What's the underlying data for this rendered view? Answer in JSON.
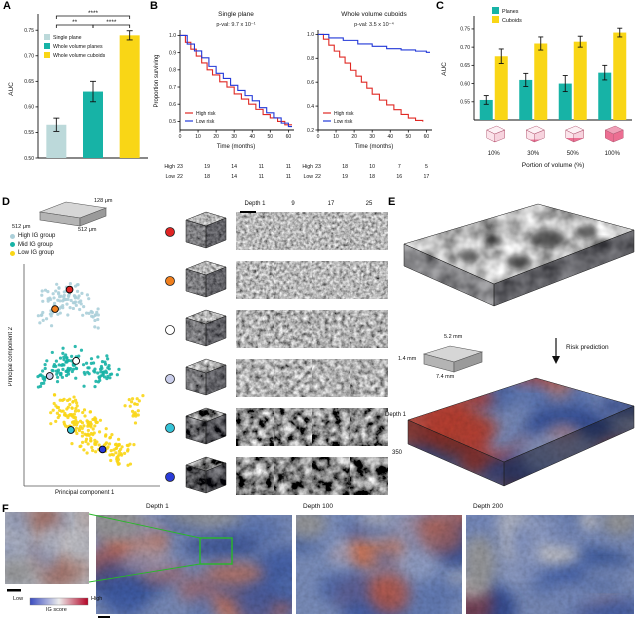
{
  "panels": {
    "A": {
      "label": "A"
    },
    "B": {
      "label": "B"
    },
    "C": {
      "label": "C"
    },
    "D": {
      "label": "D"
    },
    "E": {
      "label": "E"
    },
    "F": {
      "label": "F"
    }
  },
  "colors": {
    "high_risk": "#e02823",
    "low_risk": "#2238d8",
    "teal": "#17b3a6",
    "light_teal": "#bcd9da",
    "yellow": "#f9d616",
    "ig_low": "#3b4cc0",
    "ig_high": "#b40426",
    "green_annotation": "#28b828",
    "portion_pink": "#ec6e92"
  },
  "chart_data": [
    {
      "id": "auc-by-input",
      "type": "bar",
      "ylabel": "AUC",
      "ylim": [
        0.5,
        0.77
      ],
      "yticks": [
        0.5,
        0.55,
        0.6,
        0.65,
        0.7,
        0.75
      ],
      "categories": [
        "Single plane",
        "Whole volume planes",
        "Whole volume cuboids"
      ],
      "values": [
        0.565,
        0.63,
        0.74
      ],
      "errors": [
        0.013,
        0.02,
        0.009
      ],
      "bar_colors": [
        "#bcd9da",
        "#17b3a6",
        "#f9d616"
      ],
      "legend": [
        "Single plane",
        "Whole volume planes",
        "Whole volume cuboids"
      ],
      "significance": [
        {
          "from": 0,
          "to": 2,
          "label": "****",
          "level": 0
        },
        {
          "from": 0,
          "to": 1,
          "label": "**",
          "level": 1
        },
        {
          "from": 1,
          "to": 2,
          "label": "****",
          "level": 1
        }
      ]
    },
    {
      "id": "km-single-plane",
      "type": "line",
      "title": "Single plane",
      "pval": "p-val: 9.7 x 10⁻¹",
      "xlabel": "Time (months)",
      "ylabel": "Proportion surviving",
      "xlim": [
        0,
        62
      ],
      "xticks": [
        0,
        10,
        20,
        30,
        40,
        50,
        60
      ],
      "ylim": [
        0.45,
        1.02
      ],
      "yticks": [
        0.5,
        0.6,
        0.7,
        0.8,
        0.9,
        1.0
      ],
      "series": [
        {
          "name": "High risk",
          "color": "#e02823",
          "x": [
            0,
            3,
            6,
            9,
            12,
            15,
            18,
            22,
            26,
            30,
            34,
            38,
            42,
            46,
            50,
            54,
            58,
            62
          ],
          "y": [
            1.0,
            0.96,
            0.92,
            0.88,
            0.84,
            0.8,
            0.77,
            0.73,
            0.7,
            0.66,
            0.63,
            0.6,
            0.57,
            0.54,
            0.52,
            0.5,
            0.48,
            0.48
          ]
        },
        {
          "name": "Low risk",
          "color": "#2238d8",
          "x": [
            0,
            4,
            8,
            12,
            16,
            20,
            24,
            28,
            32,
            36,
            40,
            44,
            48,
            52,
            56,
            60,
            62
          ],
          "y": [
            1.0,
            0.95,
            0.91,
            0.87,
            0.82,
            0.78,
            0.75,
            0.71,
            0.68,
            0.65,
            0.62,
            0.58,
            0.55,
            0.52,
            0.49,
            0.47,
            0.47
          ]
        }
      ],
      "risk_table": {
        "times": [
          0,
          15,
          30,
          45,
          60
        ],
        "rows": [
          {
            "label": "High",
            "values": [
              23,
              19,
              14,
              11,
              11
            ]
          },
          {
            "label": "Low",
            "values": [
              22,
              18,
              14,
              11,
              11
            ]
          }
        ]
      }
    },
    {
      "id": "km-whole-volume-cuboids",
      "type": "line",
      "title": "Whole volume cuboids",
      "pval": "p-val: 3.5 x 10⁻⁴",
      "xlabel": "Time (months)",
      "ylabel": "Proportion surviving",
      "xlim": [
        0,
        62
      ],
      "xticks": [
        0,
        10,
        20,
        30,
        40,
        50,
        60
      ],
      "ylim": [
        0.2,
        1.02
      ],
      "yticks": [
        0.2,
        0.4,
        0.6,
        0.8,
        1.0
      ],
      "series": [
        {
          "name": "High risk",
          "color": "#e02823",
          "x": [
            0,
            3,
            6,
            9,
            12,
            15,
            18,
            21,
            24,
            27,
            30,
            34,
            38,
            42,
            46,
            50,
            54,
            58
          ],
          "y": [
            1.0,
            0.96,
            0.91,
            0.86,
            0.81,
            0.76,
            0.7,
            0.65,
            0.6,
            0.55,
            0.5,
            0.45,
            0.41,
            0.37,
            0.33,
            0.3,
            0.28,
            0.27
          ]
        },
        {
          "name": "Low risk",
          "color": "#2238d8",
          "x": [
            0,
            6,
            14,
            22,
            30,
            38,
            46,
            54,
            60,
            62
          ],
          "y": [
            1.0,
            0.97,
            0.95,
            0.92,
            0.9,
            0.88,
            0.87,
            0.86,
            0.85,
            0.85
          ]
        }
      ],
      "risk_table": {
        "times": [
          0,
          15,
          30,
          45,
          60
        ],
        "rows": [
          {
            "label": "High",
            "values": [
              23,
              18,
              10,
              7,
              5
            ]
          },
          {
            "label": "Low",
            "values": [
              22,
              19,
              18,
              16,
              17
            ]
          }
        ]
      }
    },
    {
      "id": "auc-by-portion",
      "type": "bar",
      "xlabel": "Portion of volume (%)",
      "ylabel": "AUC",
      "ylim": [
        0.5,
        0.78
      ],
      "yticks": [
        0.55,
        0.6,
        0.65,
        0.7,
        0.75
      ],
      "categories": [
        "10%",
        "30%",
        "50%",
        "100%"
      ],
      "portion_fractions": [
        0.1,
        0.3,
        0.5,
        1.0
      ],
      "series": [
        {
          "name": "Planes",
          "color": "#17b3a6",
          "values": [
            0.555,
            0.61,
            0.6,
            0.63
          ],
          "errors": [
            0.012,
            0.018,
            0.022,
            0.02
          ]
        },
        {
          "name": "Cuboids",
          "color": "#f9d616",
          "values": [
            0.675,
            0.71,
            0.715,
            0.74
          ],
          "errors": [
            0.02,
            0.018,
            0.015,
            0.012
          ]
        }
      ]
    },
    {
      "id": "pca-embedding",
      "type": "scatter",
      "xlabel": "Principal component 1",
      "ylabel": "Principal component 2",
      "legend": [
        {
          "label": "High IG group",
          "color": "#abcfd9"
        },
        {
          "label": "Mid IG group",
          "color": "#17b3a6"
        },
        {
          "label": "Low IG group",
          "color": "#f9d616"
        }
      ],
      "clusters": [
        {
          "group": "High IG group",
          "color": "#abcfd9",
          "blobs": [
            {
              "cx": 0.3,
              "cy": 0.86,
              "sx": 0.11,
              "sy": 0.05,
              "n": 75
            },
            {
              "cx": 0.5,
              "cy": 0.77,
              "sx": 0.05,
              "sy": 0.03,
              "n": 16
            },
            {
              "cx": 0.15,
              "cy": 0.77,
              "sx": 0.04,
              "sy": 0.025,
              "n": 10
            }
          ]
        },
        {
          "group": "Mid IG group",
          "color": "#17b3a6",
          "blobs": [
            {
              "cx": 0.28,
              "cy": 0.55,
              "sx": 0.1,
              "sy": 0.05,
              "n": 65
            },
            {
              "cx": 0.57,
              "cy": 0.52,
              "sx": 0.09,
              "sy": 0.045,
              "n": 50
            },
            {
              "cx": 0.12,
              "cy": 0.49,
              "sx": 0.04,
              "sy": 0.03,
              "n": 14
            }
          ]
        },
        {
          "group": "Low IG group",
          "color": "#f9d616",
          "blobs": [
            {
              "cx": 0.3,
              "cy": 0.33,
              "sx": 0.07,
              "sy": 0.05,
              "n": 55
            },
            {
              "cx": 0.5,
              "cy": 0.24,
              "sx": 0.1,
              "sy": 0.06,
              "n": 85
            },
            {
              "cx": 0.7,
              "cy": 0.15,
              "sx": 0.07,
              "sy": 0.045,
              "n": 45
            },
            {
              "cx": 0.82,
              "cy": 0.35,
              "sx": 0.05,
              "sy": 0.04,
              "n": 20
            }
          ]
        }
      ],
      "marked_points": [
        {
          "id": "sample-1",
          "color": "#e02423",
          "x": 0.33,
          "y": 0.9
        },
        {
          "id": "sample-2",
          "color": "#f07f1d",
          "x": 0.22,
          "y": 0.81
        },
        {
          "id": "sample-3",
          "color": "#ffffff",
          "x": 0.38,
          "y": 0.57
        },
        {
          "id": "sample-4",
          "color": "#c9cdea",
          "x": 0.18,
          "y": 0.5
        },
        {
          "id": "sample-5",
          "color": "#35c3d7",
          "x": 0.34,
          "y": 0.25
        },
        {
          "id": "sample-6",
          "color": "#2a3bd8",
          "x": 0.58,
          "y": 0.16
        }
      ]
    }
  ],
  "panelD": {
    "cuboid_dims": [
      "128 μm",
      "512 μm",
      "512 μm"
    ],
    "depth_headers": [
      "Depth 1",
      "9",
      "17",
      "25"
    ]
  },
  "panelE": {
    "dims": [
      "5.2 mm",
      "1.4 mm",
      "7.4 mm"
    ],
    "arrow_label": "Risk prediction",
    "depth_top": "Depth 1",
    "depth_bottom": "350"
  },
  "panelF": {
    "depth_labels": [
      "Depth 1",
      "Depth 100",
      "Depth 200"
    ],
    "colorbar": {
      "low": "Low",
      "high": "High",
      "title": "IG score"
    }
  }
}
